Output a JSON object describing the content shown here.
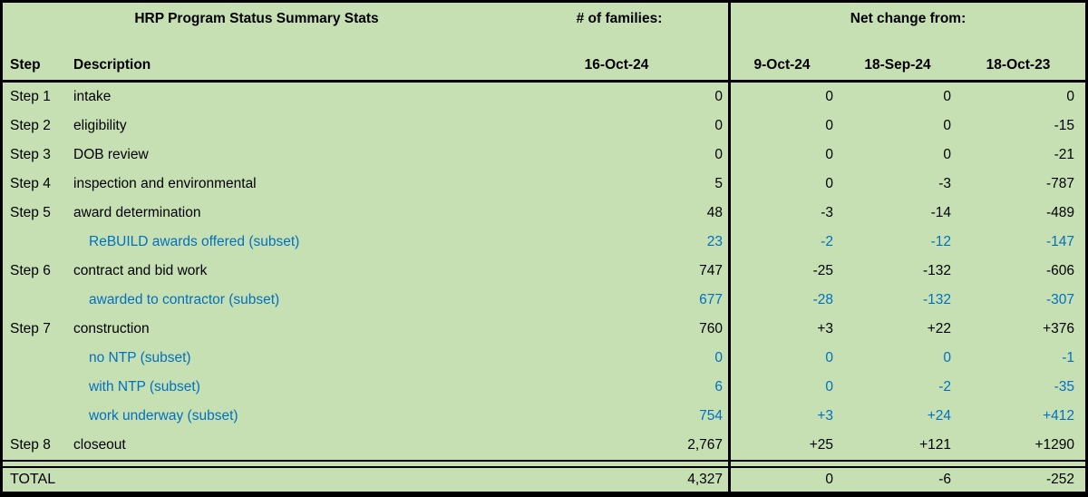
{
  "header": {
    "title": "HRP Program Status Summary Stats",
    "families_label": "# of families:",
    "net_change_label": "Net change from:",
    "col_step": "Step",
    "col_description": "Description",
    "current_date": "16-Oct-24",
    "change_dates": [
      "9-Oct-24",
      "18-Sep-24",
      "18-Oct-23"
    ]
  },
  "colors": {
    "background": "#c6e0b4",
    "subset_blue": "#0070c0",
    "text": "#000000",
    "border": "#000000"
  },
  "table": {
    "rows": [
      {
        "step": "Step 1",
        "desc": "intake",
        "fam": "0",
        "c1": "0",
        "c2": "0",
        "c3": "0"
      },
      {
        "step": "Step 2",
        "desc": "eligibility",
        "fam": "0",
        "c1": "0",
        "c2": "0",
        "c3": "-15"
      },
      {
        "step": "Step 3",
        "desc": "DOB review",
        "fam": "0",
        "c1": "0",
        "c2": "0",
        "c3": "-21"
      },
      {
        "step": "Step 4",
        "desc": "inspection and environmental",
        "fam": "5",
        "c1": "0",
        "c2": "-3",
        "c3": "-787"
      },
      {
        "step": "Step 5",
        "desc": "award determination",
        "fam": "48",
        "c1": "-3",
        "c2": "-14",
        "c3": "-489"
      },
      {
        "step": "",
        "desc": "ReBUILD awards offered (subset)",
        "fam": "23",
        "c1": "-2",
        "c2": "-12",
        "c3": "-147"
      },
      {
        "step": "Step 6",
        "desc": "contract and bid work",
        "fam": "747",
        "c1": "-25",
        "c2": "-132",
        "c3": "-606"
      },
      {
        "step": "",
        "desc": "awarded to contractor (subset)",
        "fam": "677",
        "c1": "-28",
        "c2": "-132",
        "c3": "-307"
      },
      {
        "step": "Step 7",
        "desc": "construction",
        "fam": "760",
        "c1": "+3",
        "c2": "+22",
        "c3": "+376"
      },
      {
        "step": "",
        "desc": "no NTP (subset)",
        "fam": "0",
        "c1": "0",
        "c2": "0",
        "c3": "-1"
      },
      {
        "step": "",
        "desc": "with NTP (subset)",
        "fam": "6",
        "c1": "0",
        "c2": "-2",
        "c3": "-35"
      },
      {
        "step": "",
        "desc": "work underway (subset)",
        "fam": "754",
        "c1": "+3",
        "c2": "+24",
        "c3": "+412"
      },
      {
        "step": "Step 8",
        "desc": "closeout",
        "fam": "2,767",
        "c1": "+25",
        "c2": "+121",
        "c3": "+1290"
      }
    ],
    "total": {
      "label": "TOTAL",
      "fam": "4,327",
      "c1": "0",
      "c2": "-6",
      "c3": "-252"
    }
  }
}
